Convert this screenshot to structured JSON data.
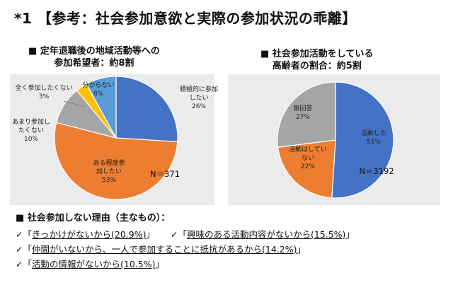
{
  "title": "*1 【参考：社会参加意欲と実際の参加状況の乖離】",
  "colors": {
    "blue": "#4472c4",
    "orange": "#ed7d31",
    "gray": "#a5a5a5",
    "yellow": "#ffc000",
    "panel_bg": "#ebebeb"
  },
  "left_heading": {
    "line1": "■ 定年退職後の地域活動等への",
    "line2": "参加希望者：約8割"
  },
  "right_heading": {
    "line1": "■ 社会参加活動をしている",
    "line2": "高齢者の割合：約5割"
  },
  "chart_data": [
    {
      "type": "pie",
      "n_label": "N＝371",
      "slices": [
        {
          "label": "積極的に参加したい",
          "label_lines": [
            "積極的に参加",
            "したい"
          ],
          "value": 26,
          "value_label": "26%",
          "color": "#4472c4"
        },
        {
          "label": "ある程度参加したい",
          "label_lines": [
            "ある程度参",
            "加したい"
          ],
          "value": 53,
          "value_label": "53%",
          "color": "#ed7d31"
        },
        {
          "label": "あまり参加したくない",
          "label_lines": [
            "あまり参加し",
            "たくない"
          ],
          "value": 10,
          "value_label": "10%",
          "color": "#a5a5a5"
        },
        {
          "label": "全く参加したくない",
          "label_lines": [
            "全く参加したくない"
          ],
          "value": 3,
          "value_label": "3%",
          "color": "#ffc000"
        },
        {
          "label": "分からない",
          "label_lines": [
            "分からない"
          ],
          "value": 8,
          "value_label": "8%",
          "color": "#5b9bd5"
        }
      ]
    },
    {
      "type": "pie",
      "n_label": "N＝3192",
      "slices": [
        {
          "label": "活動した",
          "label_lines": [
            "活動した"
          ],
          "value": 51,
          "value_label": "51%",
          "color": "#4472c4"
        },
        {
          "label": "活動はしていない",
          "label_lines": [
            "活動はしてい",
            "ない"
          ],
          "value": 22,
          "value_label": "22%",
          "color": "#ed7d31"
        },
        {
          "label": "無回答",
          "label_lines": [
            "無回答"
          ],
          "value": 27,
          "value_label": "27%",
          "color": "#a5a5a5"
        }
      ]
    }
  ],
  "reasons": {
    "heading": "■ 社会参加しない理由（主なもの）：",
    "items": [
      {
        "check": "✓",
        "open": "「",
        "text": "きっかけがないから(20.9%)",
        "close": "」"
      },
      {
        "check": "✓",
        "open": "「",
        "text": "興味のある活動内容がないから(15.5%)",
        "close": "」"
      },
      {
        "check": "✓",
        "open": "「",
        "text": "仲間がいないから、一人で参加することに抵抗があるから(14.2%)",
        "close": "」"
      },
      {
        "check": "✓",
        "open": "「",
        "text": "活動の情報がないから(10.5%)",
        "close": "」"
      }
    ]
  }
}
